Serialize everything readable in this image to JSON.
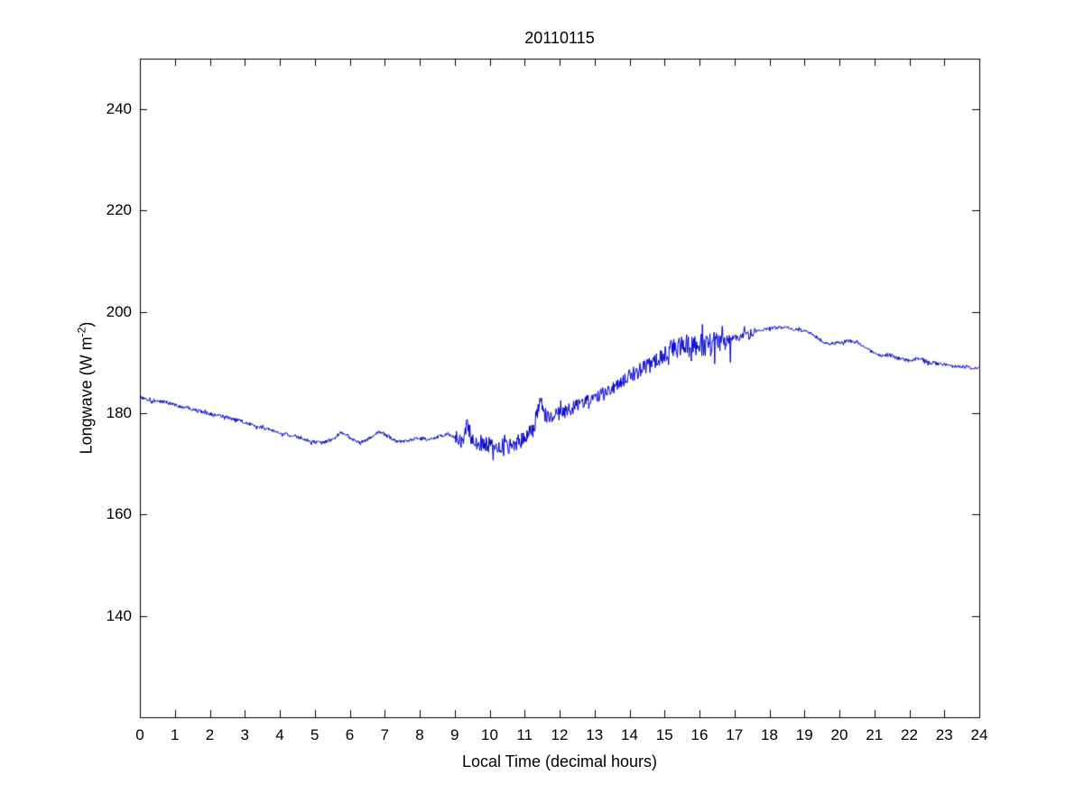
{
  "figure": {
    "background": "#ffffff"
  },
  "chart_data": {
    "type": "line",
    "title": "20110115",
    "xlabel": "Local Time (decimal hours)",
    "ylabel": {
      "prefix": "Longwave (W m",
      "superscript": "-2",
      "suffix": ")"
    },
    "line_color": "#0000CC",
    "axis_color": "#000000",
    "xlim": [
      0,
      24
    ],
    "ylim": [
      120,
      250
    ],
    "xticks": [
      0,
      1,
      2,
      3,
      4,
      5,
      6,
      7,
      8,
      9,
      10,
      11,
      12,
      13,
      14,
      15,
      16,
      17,
      18,
      19,
      20,
      21,
      22,
      23,
      24
    ],
    "yticks": [
      140,
      160,
      180,
      200,
      220,
      240
    ],
    "sample_step_hours": 0.0166667,
    "noise_seed": 20110115,
    "keypoints": [
      [
        0.0,
        183.2
      ],
      [
        0.3,
        182.6
      ],
      [
        0.7,
        182.3
      ],
      [
        1.0,
        181.6
      ],
      [
        1.4,
        181.0
      ],
      [
        1.8,
        180.2
      ],
      [
        2.2,
        179.6
      ],
      [
        2.6,
        179.0
      ],
      [
        3.0,
        178.2
      ],
      [
        3.4,
        177.3
      ],
      [
        3.8,
        176.6
      ],
      [
        4.2,
        175.8
      ],
      [
        4.6,
        175.2
      ],
      [
        4.9,
        174.4
      ],
      [
        5.2,
        174.2
      ],
      [
        5.5,
        174.8
      ],
      [
        5.75,
        176.2
      ],
      [
        6.0,
        175.2
      ],
      [
        6.3,
        174.1
      ],
      [
        6.6,
        175.3
      ],
      [
        6.85,
        176.3
      ],
      [
        7.1,
        175.4
      ],
      [
        7.35,
        174.4
      ],
      [
        7.6,
        174.6
      ],
      [
        7.9,
        175.1
      ],
      [
        8.2,
        174.9
      ],
      [
        8.5,
        175.3
      ],
      [
        8.8,
        175.9
      ],
      [
        9.0,
        175.3
      ],
      [
        9.2,
        174.6
      ],
      [
        9.35,
        177.5
      ],
      [
        9.5,
        175.0
      ],
      [
        9.7,
        174.2
      ],
      [
        10.0,
        173.8
      ],
      [
        10.3,
        173.4
      ],
      [
        10.6,
        173.6
      ],
      [
        10.9,
        174.6
      ],
      [
        11.1,
        176.0
      ],
      [
        11.3,
        177.5
      ],
      [
        11.45,
        183.5
      ],
      [
        11.6,
        179.0
      ],
      [
        11.8,
        179.5
      ],
      [
        12.0,
        180.0
      ],
      [
        12.2,
        180.5
      ],
      [
        12.5,
        181.5
      ],
      [
        12.8,
        182.5
      ],
      [
        13.0,
        183.0
      ],
      [
        13.3,
        184.2
      ],
      [
        13.6,
        185.5
      ],
      [
        14.0,
        187.3
      ],
      [
        14.3,
        188.5
      ],
      [
        14.6,
        189.8
      ],
      [
        15.0,
        191.3
      ],
      [
        15.3,
        192.5
      ],
      [
        15.6,
        193.2
      ],
      [
        16.0,
        193.3
      ],
      [
        16.4,
        193.6
      ],
      [
        16.7,
        193.8
      ],
      [
        17.0,
        194.6
      ],
      [
        17.4,
        195.8
      ],
      [
        17.8,
        196.5
      ],
      [
        18.1,
        196.9
      ],
      [
        18.5,
        196.9
      ],
      [
        18.9,
        196.4
      ],
      [
        19.2,
        195.8
      ],
      [
        19.5,
        194.2
      ],
      [
        19.7,
        193.6
      ],
      [
        20.0,
        194.0
      ],
      [
        20.3,
        194.3
      ],
      [
        20.6,
        193.6
      ],
      [
        20.9,
        192.2
      ],
      [
        21.2,
        191.2
      ],
      [
        21.4,
        191.6
      ],
      [
        21.7,
        190.8
      ],
      [
        22.0,
        190.4
      ],
      [
        22.3,
        190.9
      ],
      [
        22.6,
        189.9
      ],
      [
        23.0,
        189.6
      ],
      [
        23.4,
        189.2
      ],
      [
        23.8,
        189.0
      ],
      [
        24.0,
        189.0
      ]
    ],
    "noise_segments": [
      {
        "from": 0.0,
        "to": 9.0,
        "amp": 0.35
      },
      {
        "from": 9.0,
        "to": 11.0,
        "amp": 1.6
      },
      {
        "from": 11.0,
        "to": 13.0,
        "amp": 1.3
      },
      {
        "from": 13.0,
        "to": 15.0,
        "amp": 1.4
      },
      {
        "from": 15.0,
        "to": 16.9,
        "amp": 2.4
      },
      {
        "from": 16.9,
        "to": 17.6,
        "amp": 0.9
      },
      {
        "from": 17.6,
        "to": 19.2,
        "amp": 0.3
      },
      {
        "from": 19.2,
        "to": 24.0,
        "amp": 0.35
      }
    ]
  }
}
